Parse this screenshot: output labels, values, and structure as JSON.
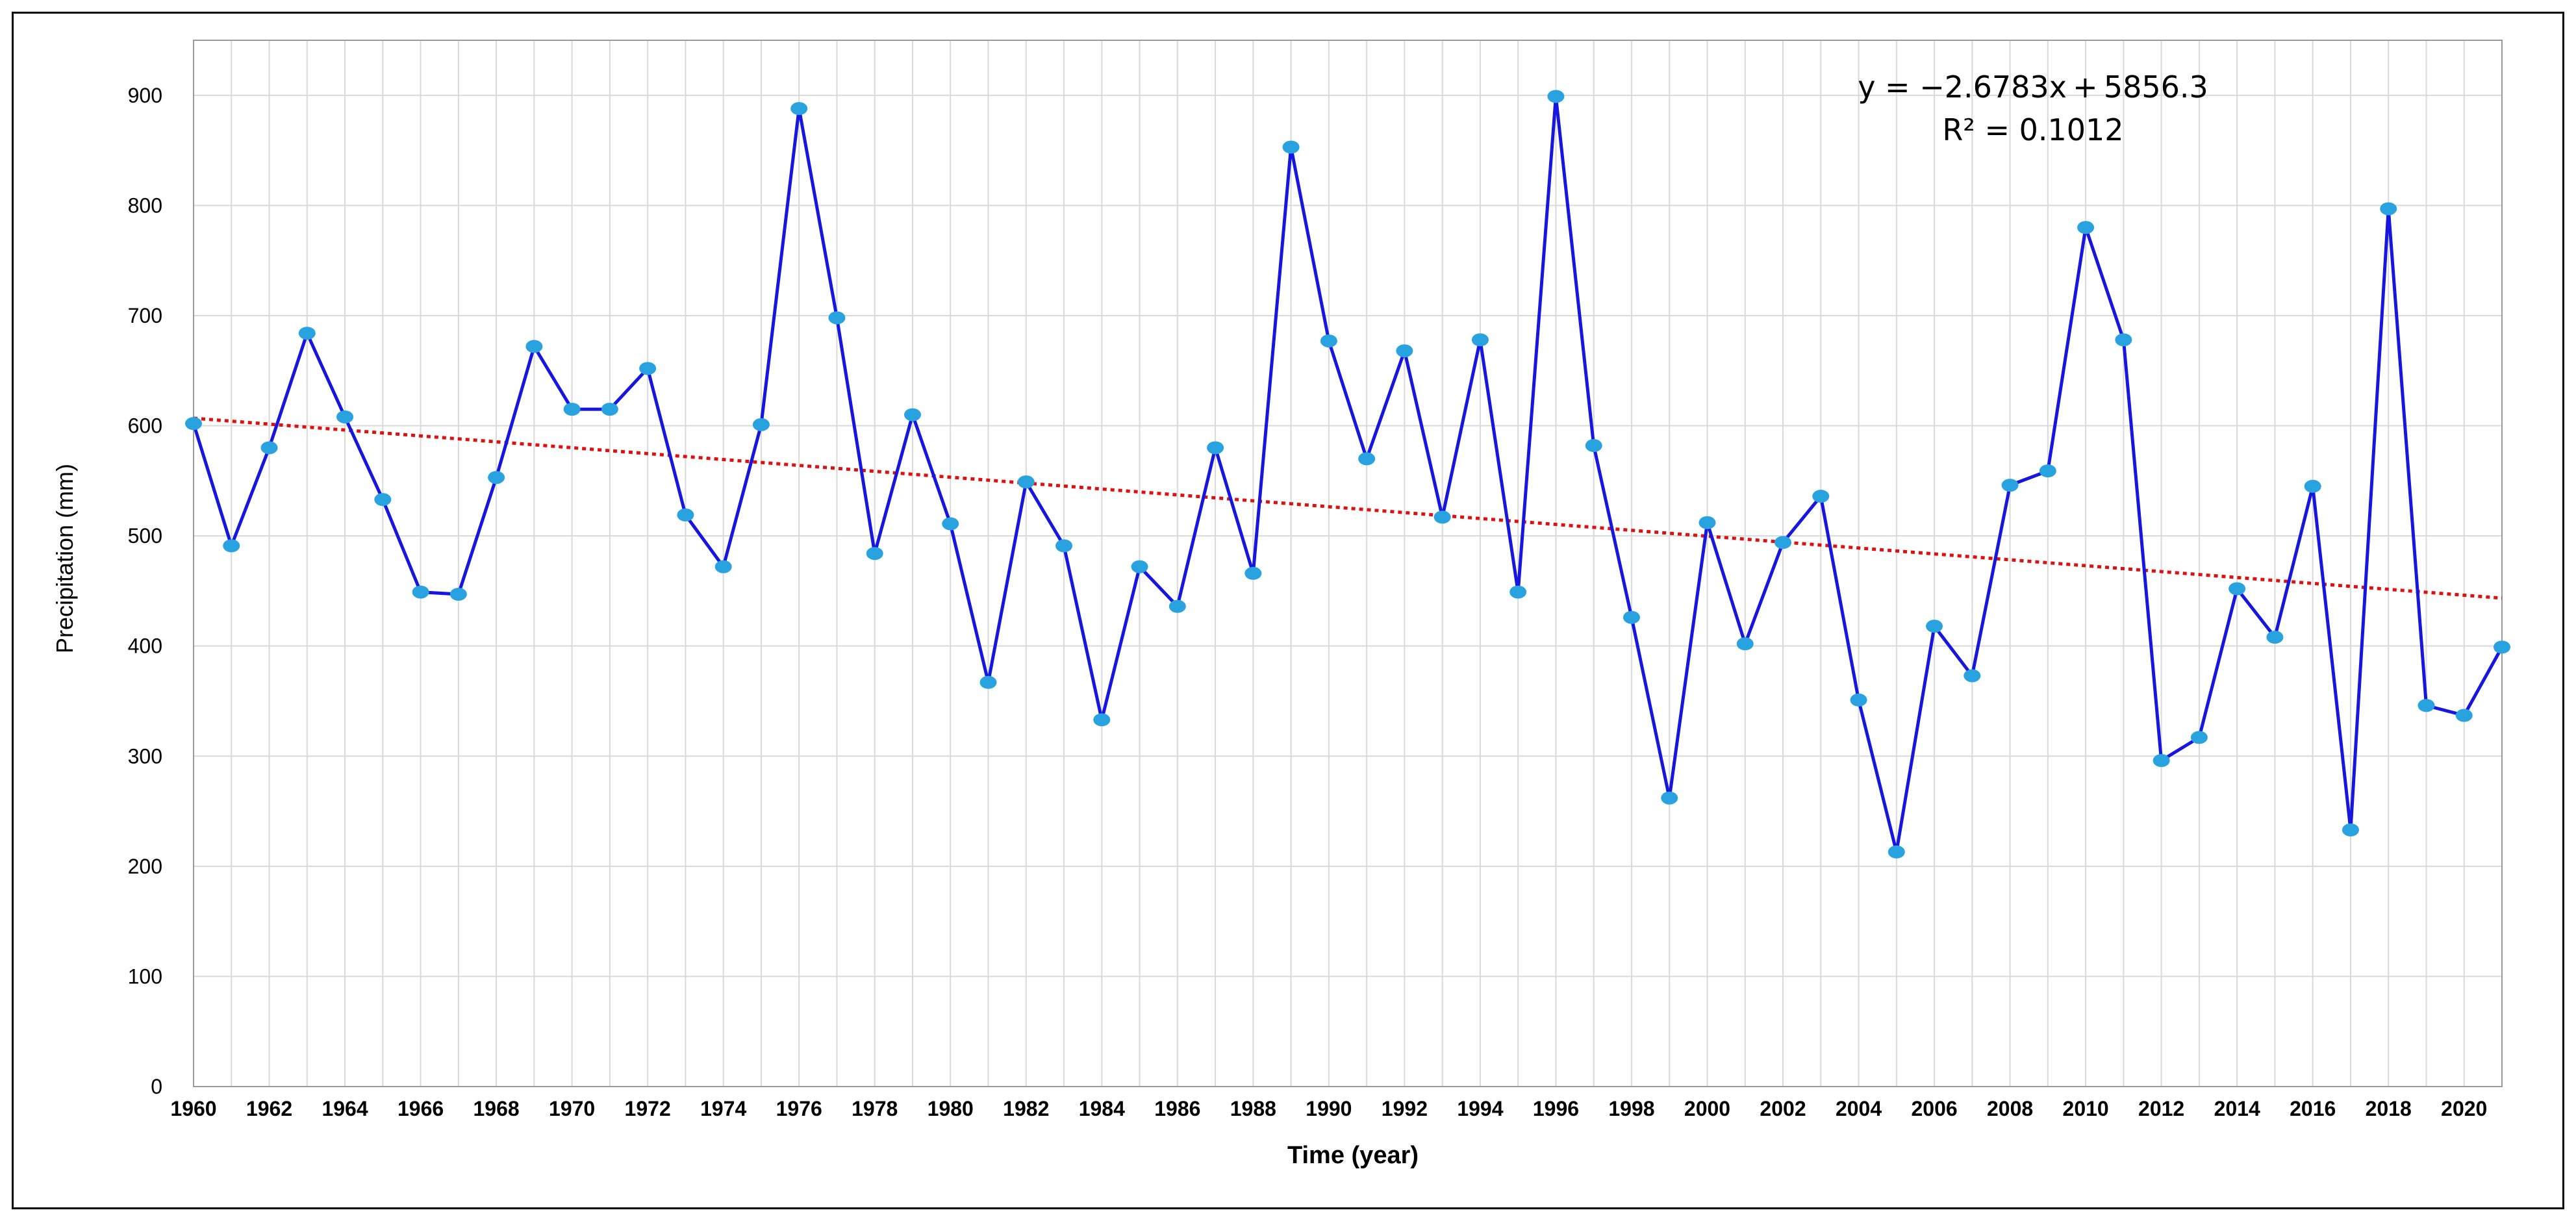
{
  "chart_data": {
    "type": "line",
    "xlabel": "Time (year)",
    "ylabel": "Precipitation (mm)",
    "xlim": [
      1960,
      2021
    ],
    "ylim": [
      0,
      950
    ],
    "y_ticks": [
      0,
      100,
      200,
      300,
      400,
      500,
      600,
      700,
      800,
      900
    ],
    "x_ticks": [
      1960,
      1962,
      1964,
      1966,
      1968,
      1970,
      1972,
      1974,
      1976,
      1978,
      1980,
      1982,
      1984,
      1986,
      1988,
      1990,
      1992,
      1994,
      1996,
      1998,
      2000,
      2002,
      2004,
      2006,
      2008,
      2010,
      2012,
      2014,
      2016,
      2018,
      2020
    ],
    "grid": true,
    "series": [
      {
        "color": "#1616e0",
        "marker_color": "#29a3e0",
        "x": [
          1960,
          1961,
          1962,
          1963,
          1964,
          1965,
          1966,
          1967,
          1968,
          1969,
          1970,
          1971,
          1972,
          1973,
          1974,
          1975,
          1976,
          1977,
          1978,
          1979,
          1980,
          1981,
          1982,
          1983,
          1984,
          1985,
          1986,
          1987,
          1988,
          1989,
          1990,
          1991,
          1992,
          1993,
          1994,
          1995,
          1996,
          1997,
          1998,
          1999,
          2000,
          2001,
          2002,
          2003,
          2004,
          2005,
          2006,
          2007,
          2008,
          2009,
          2010,
          2011,
          2012,
          2013,
          2014,
          2015,
          2016,
          2017,
          2018,
          2019,
          2020,
          2021
        ],
        "values": [
          602,
          491,
          580,
          684,
          608,
          533,
          449,
          447,
          553,
          672,
          615,
          615,
          652,
          519,
          472,
          601,
          888,
          698,
          484,
          610,
          511,
          367,
          549,
          491,
          333,
          472,
          436,
          580,
          466,
          853,
          677,
          570,
          668,
          517,
          678,
          449,
          899,
          582,
          426,
          262,
          512,
          402,
          494,
          536,
          351,
          213,
          418,
          373,
          546,
          559,
          780,
          678,
          296,
          317,
          452,
          408,
          545,
          233,
          797,
          346,
          337,
          399
        ]
      }
    ],
    "trendline": {
      "type": "linear",
      "color": "#e01010",
      "slope": -2.6783,
      "intercept": 5856.3
    },
    "annotations": {
      "equation": "y = −2.6783x + 5856.3",
      "r_squared": "R² = 0.1012"
    }
  }
}
